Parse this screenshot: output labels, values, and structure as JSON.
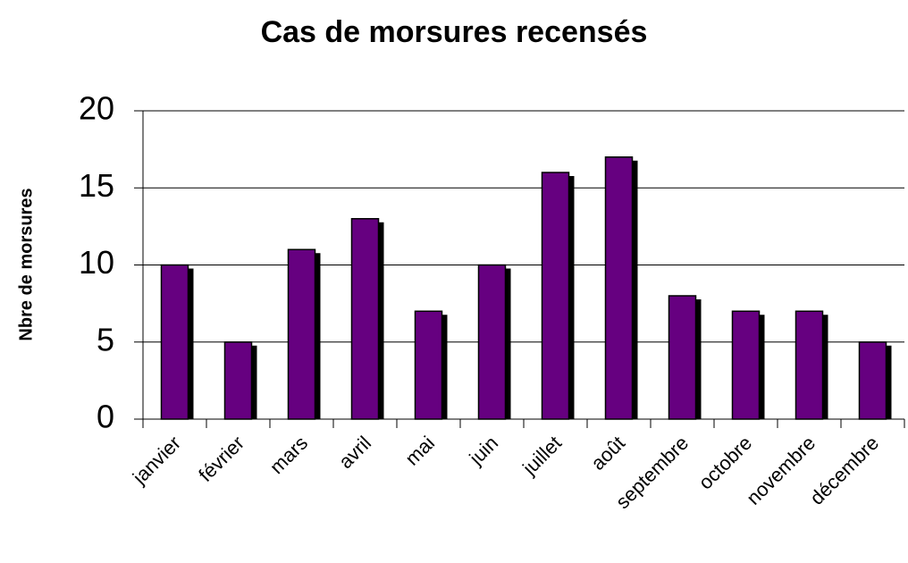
{
  "chart_data": {
    "type": "bar",
    "title": "Cas de morsures recensés",
    "y_label": "Nbre de morsures",
    "categories": [
      "janvier",
      "février",
      "mars",
      "avril",
      "mai",
      "juin",
      "juillet",
      "août",
      "septembre",
      "octobre",
      "novembre",
      "décembre"
    ],
    "values": [
      10,
      5,
      11,
      13,
      7,
      10,
      16,
      17,
      8,
      7,
      7,
      5
    ],
    "color": "#660080",
    "ylim": [
      0,
      20
    ],
    "yticks": [
      0,
      5,
      10,
      15,
      20
    ],
    "grid": true
  }
}
